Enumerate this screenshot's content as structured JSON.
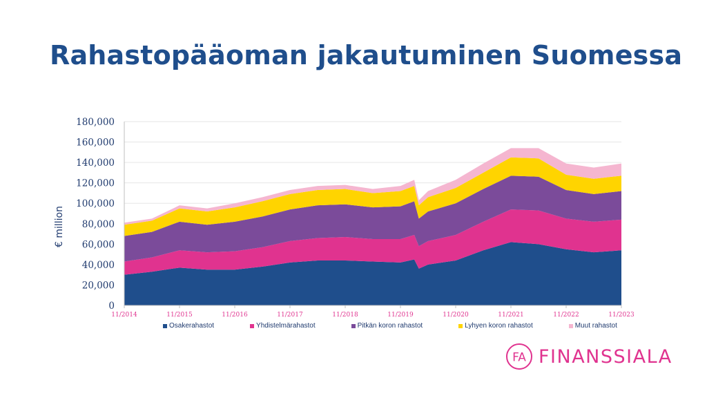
{
  "page": {
    "title": "Rahastopääoman jakautuminen Suomessa",
    "logo_text": "FINANSSIALA",
    "logo_letters": "FA"
  },
  "chart_data": {
    "type": "area",
    "stacked": true,
    "ylabel": "€ million",
    "ylim": [
      0,
      180000
    ],
    "yticks": [
      0,
      20000,
      40000,
      60000,
      80000,
      100000,
      120000,
      140000,
      160000,
      180000
    ],
    "ytick_labels": [
      "0",
      "20,000",
      "40,000",
      "60,000",
      "80,000",
      "100,000",
      "120,000",
      "140,000",
      "160,000",
      "180,000"
    ],
    "x_tick_labels": [
      "11/2014",
      "11/2015",
      "11/2016",
      "11/2017",
      "11/2018",
      "11/2019",
      "11/2020",
      "11/2021",
      "11/2022",
      "11/2023"
    ],
    "x": [
      "11/2014",
      "05/2015",
      "11/2015",
      "05/2016",
      "11/2016",
      "05/2017",
      "11/2017",
      "05/2018",
      "11/2018",
      "05/2019",
      "11/2019",
      "02/2020",
      "03/2020",
      "05/2020",
      "11/2020",
      "05/2021",
      "11/2021",
      "05/2022",
      "11/2022",
      "05/2023",
      "11/2023"
    ],
    "series": [
      {
        "name": "Osakerahastot",
        "color": "#1f4e8c",
        "values": [
          30000,
          33000,
          37000,
          35000,
          35000,
          38000,
          42000,
          44000,
          44000,
          43000,
          42000,
          45000,
          36000,
          40000,
          44000,
          54000,
          62000,
          60000,
          55000,
          52000,
          54000
        ]
      },
      {
        "name": "Yhdistelmärahastot",
        "color": "#e0338f",
        "values": [
          13000,
          14000,
          17000,
          17000,
          18000,
          19000,
          21000,
          22000,
          23000,
          22000,
          23000,
          24000,
          22000,
          23000,
          25000,
          28000,
          32000,
          33000,
          30000,
          30000,
          30000
        ]
      },
      {
        "name": "Pitkän koron rahastot",
        "color": "#7b4b9a",
        "values": [
          25000,
          25000,
          28000,
          27000,
          29000,
          30000,
          31000,
          32000,
          32000,
          31000,
          32000,
          33000,
          27000,
          29000,
          31000,
          32000,
          33000,
          33000,
          28000,
          27000,
          28000
        ]
      },
      {
        "name": "Lyhyen koron rahastot",
        "color": "#ffd400",
        "values": [
          11000,
          11000,
          13000,
          13000,
          14000,
          15000,
          15000,
          15000,
          15000,
          14000,
          15000,
          15000,
          13000,
          14000,
          15000,
          16000,
          18000,
          18000,
          15000,
          15000,
          15000
        ]
      },
      {
        "name": "Muut rahastot",
        "color": "#f5b6d0",
        "values": [
          2000,
          2000,
          3000,
          3000,
          4000,
          4000,
          4000,
          4000,
          4000,
          4000,
          5000,
          6000,
          5000,
          6000,
          8000,
          9000,
          9000,
          10000,
          11000,
          11000,
          12000
        ]
      }
    ],
    "legend_position": "bottom",
    "grid": true
  }
}
